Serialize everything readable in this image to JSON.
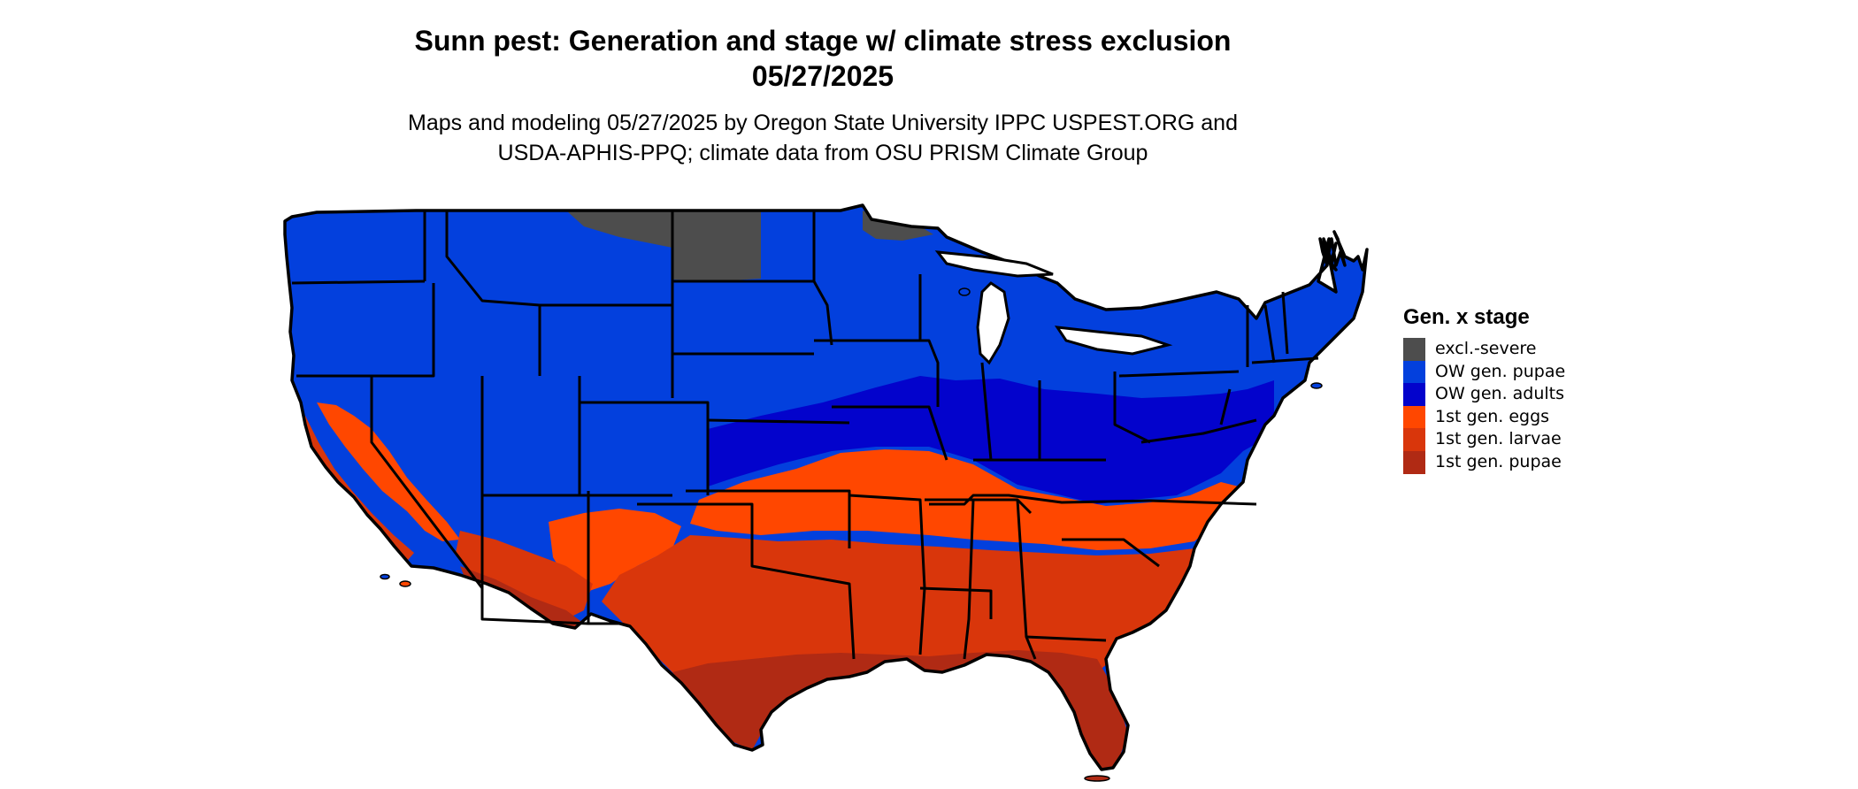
{
  "title": {
    "line1": "Sunn pest: Generation and stage w/ climate stress exclusion",
    "line2": "05/27/2025"
  },
  "subtitle": {
    "line1": "Maps and modeling 05/27/2025 by Oregon State University IPPC USPEST.ORG and",
    "line2": "USDA-APHIS-PPQ; climate data from OSU PRISM Climate Group"
  },
  "legend": {
    "title": "Gen. x stage",
    "items": [
      {
        "label": "excl.-severe",
        "color": "#4d4d4d"
      },
      {
        "label": "OW gen. pupae",
        "color": "#0340dd"
      },
      {
        "label": "OW gen. adults",
        "color": "#0303cc"
      },
      {
        "label": "1st gen. eggs",
        "color": "#ff4700"
      },
      {
        "label": "1st gen. larvae",
        "color": "#d9360b"
      },
      {
        "label": "1st gen. pupae",
        "color": "#b02a14"
      }
    ]
  },
  "map": {
    "region": "Contiguous United States",
    "border_color": "#000000"
  }
}
